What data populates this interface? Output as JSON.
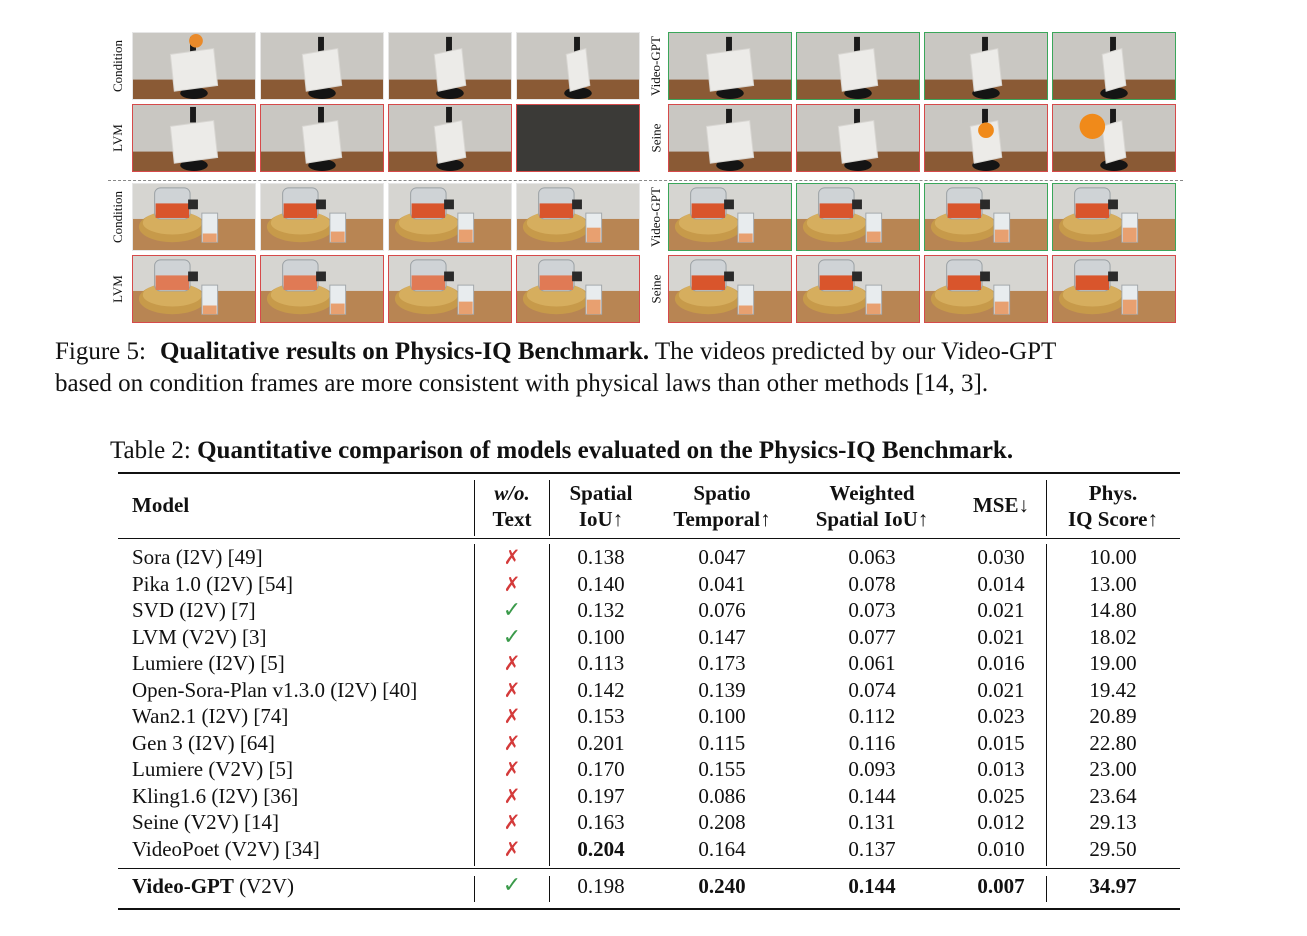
{
  "figure": {
    "top_block": {
      "left_rows": [
        "Condition",
        "LVM"
      ],
      "right_rows": [
        "Video-GPT",
        "Seine"
      ]
    },
    "bottom_block": {
      "left_rows": [
        "Condition",
        "LVM"
      ],
      "right_rows": [
        "Video-GPT",
        "Seine"
      ]
    },
    "colors": {
      "lvm_border": "#d64a4a",
      "videogpt_border": "#3aa65a",
      "seine_border": "#d64a4a"
    }
  },
  "caption": {
    "label": "Figure 5:",
    "title": "Qualitative results on Physics-IQ Benchmark.",
    "text_line1": " The videos predicted by our Video-GPT",
    "text_line2": "based on condition frames are more consistent with physical laws than other methods [14, 3]."
  },
  "table": {
    "label": "Table 2:",
    "title": "Quantitative comparison of models evaluated on the Physics-IQ Benchmark.",
    "headers": {
      "model": "Model",
      "wo_line1": "w/o.",
      "wo_line2": "Text",
      "spatial_line1": "Spatial",
      "spatial_line2": "IoU↑",
      "st_line1": "Spatio",
      "st_line2": "Temporal↑",
      "weighted_line1": "Weighted",
      "weighted_line2": "Spatial IoU↑",
      "mse": "MSE↓",
      "phys_line1": "Phys.",
      "phys_line2": "IQ Score↑"
    },
    "rows": [
      {
        "model": "Sora (I2V) [49]",
        "wo": "x",
        "spatial": "0.138",
        "st": "0.047",
        "weighted": "0.063",
        "mse": "0.030",
        "score": "10.00"
      },
      {
        "model": "Pika 1.0 (I2V) [54]",
        "wo": "x",
        "spatial": "0.140",
        "st": "0.041",
        "weighted": "0.078",
        "mse": "0.014",
        "score": "13.00"
      },
      {
        "model": "SVD (I2V) [7]",
        "wo": "check",
        "spatial": "0.132",
        "st": "0.076",
        "weighted": "0.073",
        "mse": "0.021",
        "score": "14.80"
      },
      {
        "model": "LVM (V2V) [3]",
        "wo": "check",
        "spatial": "0.100",
        "st": "0.147",
        "weighted": "0.077",
        "mse": "0.021",
        "score": "18.02"
      },
      {
        "model": "Lumiere (I2V) [5]",
        "wo": "x",
        "spatial": "0.113",
        "st": "0.173",
        "weighted": "0.061",
        "mse": "0.016",
        "score": "19.00"
      },
      {
        "model": "Open-Sora-Plan v1.3.0 (I2V) [40]",
        "wo": "x",
        "spatial": "0.142",
        "st": "0.139",
        "weighted": "0.074",
        "mse": "0.021",
        "score": "19.42"
      },
      {
        "model": "Wan2.1 (I2V) [74]",
        "wo": "x",
        "spatial": "0.153",
        "st": "0.100",
        "weighted": "0.112",
        "mse": "0.023",
        "score": "20.89"
      },
      {
        "model": "Gen 3 (I2V) [64]",
        "wo": "x",
        "spatial": "0.201",
        "st": "0.115",
        "weighted": "0.116",
        "mse": "0.015",
        "score": "22.80"
      },
      {
        "model": "Lumiere (V2V) [5]",
        "wo": "x",
        "spatial": "0.170",
        "st": "0.155",
        "weighted": "0.093",
        "mse": "0.013",
        "score": "23.00"
      },
      {
        "model": "Kling1.6 (I2V) [36]",
        "wo": "x",
        "spatial": "0.197",
        "st": "0.086",
        "weighted": "0.144",
        "mse": "0.025",
        "score": "23.64"
      },
      {
        "model": "Seine (V2V) [14]",
        "wo": "x",
        "spatial": "0.163",
        "st": "0.208",
        "weighted": "0.131",
        "mse": "0.012",
        "score": "29.13"
      },
      {
        "model": "VideoPoet (V2V) [34]",
        "wo": "x",
        "spatial": "0.204",
        "st": "0.164",
        "weighted": "0.137",
        "mse": "0.010",
        "score": "29.50"
      }
    ],
    "final_row": {
      "model_bold": "Video-GPT",
      "model_rest": " (V2V)",
      "wo": "check",
      "spatial": "0.198",
      "st": "0.240",
      "weighted": "0.144",
      "mse": "0.007",
      "score": "34.97"
    },
    "glyphs": {
      "x": "✗",
      "check": "✓"
    }
  }
}
